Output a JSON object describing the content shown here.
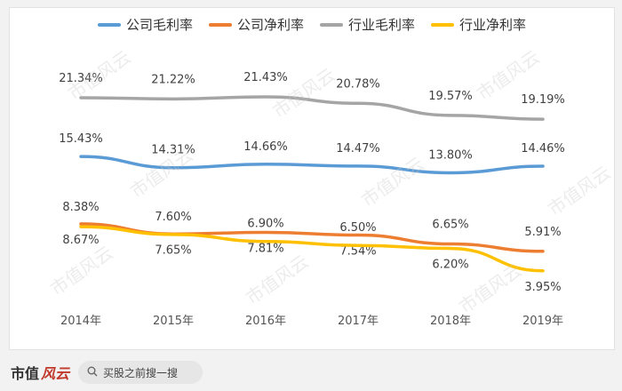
{
  "chart_data": {
    "type": "line",
    "categories": [
      "2014年",
      "2015年",
      "2016年",
      "2017年",
      "2018年",
      "2019年"
    ],
    "series": [
      {
        "name": "公司毛利率",
        "color": "#5b9bd5",
        "values": [
          15.43,
          14.31,
          14.66,
          14.47,
          13.8,
          14.46
        ],
        "labels": [
          "15.43%",
          "14.31%",
          "14.66%",
          "14.47%",
          "13.80%",
          "14.46%"
        ]
      },
      {
        "name": "公司净利率",
        "color": "#ed7d31",
        "values": [
          8.67,
          7.65,
          7.81,
          7.54,
          6.65,
          5.91
        ],
        "labels": [
          "8.67%",
          "7.65%",
          "7.81%",
          "7.54%",
          "6.65%",
          "5.91%"
        ]
      },
      {
        "name": "行业毛利率",
        "color": "#a5a5a5",
        "values": [
          21.34,
          21.22,
          21.43,
          20.78,
          19.57,
          19.19
        ],
        "labels": [
          "21.34%",
          "21.22%",
          "21.43%",
          "20.78%",
          "19.57%",
          "19.19%"
        ]
      },
      {
        "name": "行业净利率",
        "color": "#ffc000",
        "values": [
          8.38,
          7.6,
          6.9,
          6.5,
          6.2,
          3.95
        ],
        "labels": [
          "8.38%",
          "7.60%",
          "6.90%",
          "6.50%",
          "6.20%",
          "3.95%"
        ]
      }
    ],
    "ylim": [
      0,
      25
    ],
    "grid": false,
    "legend": "top"
  },
  "watermark": "市值风云",
  "footer": {
    "brand": "市值",
    "brand_mark": "风云",
    "search_placeholder": "买股之前搜一搜"
  }
}
